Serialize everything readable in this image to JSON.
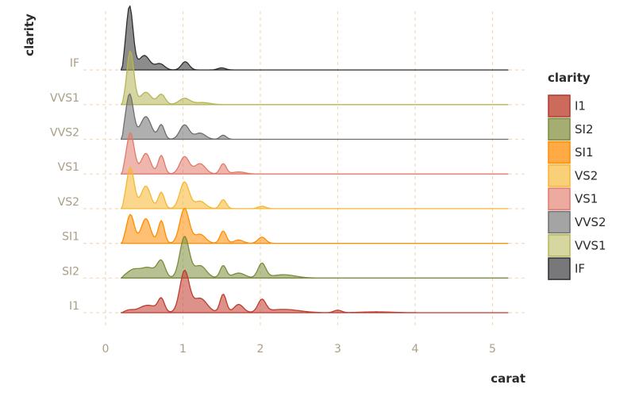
{
  "chart_data": {
    "type": "ridgeline",
    "xlabel": "carat",
    "ylabel": "clarity",
    "xlim": [
      0,
      5.2
    ],
    "x_ticks": [
      "0",
      "1",
      "2",
      "3",
      "4",
      "5"
    ],
    "x_tick_values": [
      0,
      1,
      2,
      3,
      4,
      5
    ],
    "grid": "dashed",
    "legend": {
      "title": "clarity",
      "placement": "right"
    },
    "categories": [
      "I1",
      "SI2",
      "SI1",
      "VS2",
      "VS1",
      "VVS2",
      "VVS1",
      "IF"
    ],
    "series": [
      {
        "name": "I1",
        "color": "#c0392b",
        "peaks": [
          [
            0.3,
            0.05,
            0.05
          ],
          [
            0.55,
            0.18,
            0.12
          ],
          [
            0.72,
            0.3,
            0.04
          ],
          [
            1.02,
            1.0,
            0.06
          ],
          [
            1.22,
            0.35,
            0.09
          ],
          [
            1.52,
            0.45,
            0.04
          ],
          [
            1.72,
            0.2,
            0.06
          ],
          [
            2.02,
            0.3,
            0.05
          ],
          [
            2.3,
            0.08,
            0.2
          ],
          [
            3.0,
            0.06,
            0.05
          ],
          [
            3.5,
            0.02,
            0.2
          ]
        ]
      },
      {
        "name": "SI2",
        "color": "#7a8c3a",
        "peaks": [
          [
            0.35,
            0.18,
            0.08
          ],
          [
            0.55,
            0.25,
            0.1
          ],
          [
            0.72,
            0.38,
            0.05
          ],
          [
            1.02,
            1.0,
            0.06
          ],
          [
            1.22,
            0.3,
            0.08
          ],
          [
            1.52,
            0.3,
            0.04
          ],
          [
            1.72,
            0.12,
            0.08
          ],
          [
            2.02,
            0.35,
            0.05
          ],
          [
            2.3,
            0.08,
            0.15
          ]
        ]
      },
      {
        "name": "SI1",
        "color": "#ff8c00",
        "peaks": [
          [
            0.32,
            0.7,
            0.05
          ],
          [
            0.52,
            0.6,
            0.06
          ],
          [
            0.72,
            0.55,
            0.04
          ],
          [
            1.02,
            0.85,
            0.06
          ],
          [
            1.22,
            0.22,
            0.07
          ],
          [
            1.52,
            0.3,
            0.04
          ],
          [
            1.72,
            0.08,
            0.06
          ],
          [
            2.02,
            0.15,
            0.05
          ]
        ]
      },
      {
        "name": "VS2",
        "color": "#f5b730",
        "peaks": [
          [
            0.32,
            1.0,
            0.05
          ],
          [
            0.52,
            0.55,
            0.06
          ],
          [
            0.72,
            0.4,
            0.04
          ],
          [
            1.02,
            0.65,
            0.06
          ],
          [
            1.22,
            0.18,
            0.07
          ],
          [
            1.52,
            0.22,
            0.04
          ],
          [
            2.02,
            0.06,
            0.05
          ]
        ]
      },
      {
        "name": "VS1",
        "color": "#e07a6a",
        "peaks": [
          [
            0.32,
            1.0,
            0.05
          ],
          [
            0.52,
            0.5,
            0.06
          ],
          [
            0.72,
            0.45,
            0.04
          ],
          [
            1.02,
            0.42,
            0.06
          ],
          [
            1.22,
            0.25,
            0.07
          ],
          [
            1.52,
            0.25,
            0.04
          ],
          [
            1.72,
            0.05,
            0.08
          ]
        ]
      },
      {
        "name": "VVS2",
        "color": "#6e6e6e",
        "peaks": [
          [
            0.31,
            1.1,
            0.05
          ],
          [
            0.52,
            0.55,
            0.07
          ],
          [
            0.72,
            0.35,
            0.04
          ],
          [
            1.02,
            0.35,
            0.06
          ],
          [
            1.22,
            0.15,
            0.07
          ],
          [
            1.52,
            0.1,
            0.04
          ]
        ]
      },
      {
        "name": "VVS1",
        "color": "#b5b556",
        "peaks": [
          [
            0.32,
            1.3,
            0.045
          ],
          [
            0.52,
            0.3,
            0.07
          ],
          [
            0.72,
            0.25,
            0.05
          ],
          [
            1.02,
            0.15,
            0.07
          ],
          [
            1.25,
            0.05,
            0.1
          ]
        ]
      },
      {
        "name": "IF",
        "color": "#2e2e2e",
        "peaks": [
          [
            0.31,
            1.55,
            0.045
          ],
          [
            0.5,
            0.35,
            0.07
          ],
          [
            0.7,
            0.15,
            0.06
          ],
          [
            1.03,
            0.2,
            0.05
          ],
          [
            1.5,
            0.05,
            0.05
          ]
        ]
      }
    ],
    "legend_items": [
      {
        "label": "I1",
        "fill": "#cc6a5c",
        "stroke": "#b0392b"
      },
      {
        "label": "SI2",
        "fill": "#a5ad72",
        "stroke": "#7a8c3a"
      },
      {
        "label": "SI1",
        "fill": "#ffaa44",
        "stroke": "#ff8c00"
      },
      {
        "label": "VS2",
        "fill": "#f9cf78",
        "stroke": "#f5b730"
      },
      {
        "label": "VS1",
        "fill": "#ecaaa0",
        "stroke": "#e07a6a"
      },
      {
        "label": "VVS2",
        "fill": "#a4a4a4",
        "stroke": "#6e6e6e"
      },
      {
        "label": "VVS1",
        "fill": "#d6d6a0",
        "stroke": "#b5b556"
      },
      {
        "label": "IF",
        "fill": "#78787a",
        "stroke": "#2e2e2e"
      }
    ]
  }
}
